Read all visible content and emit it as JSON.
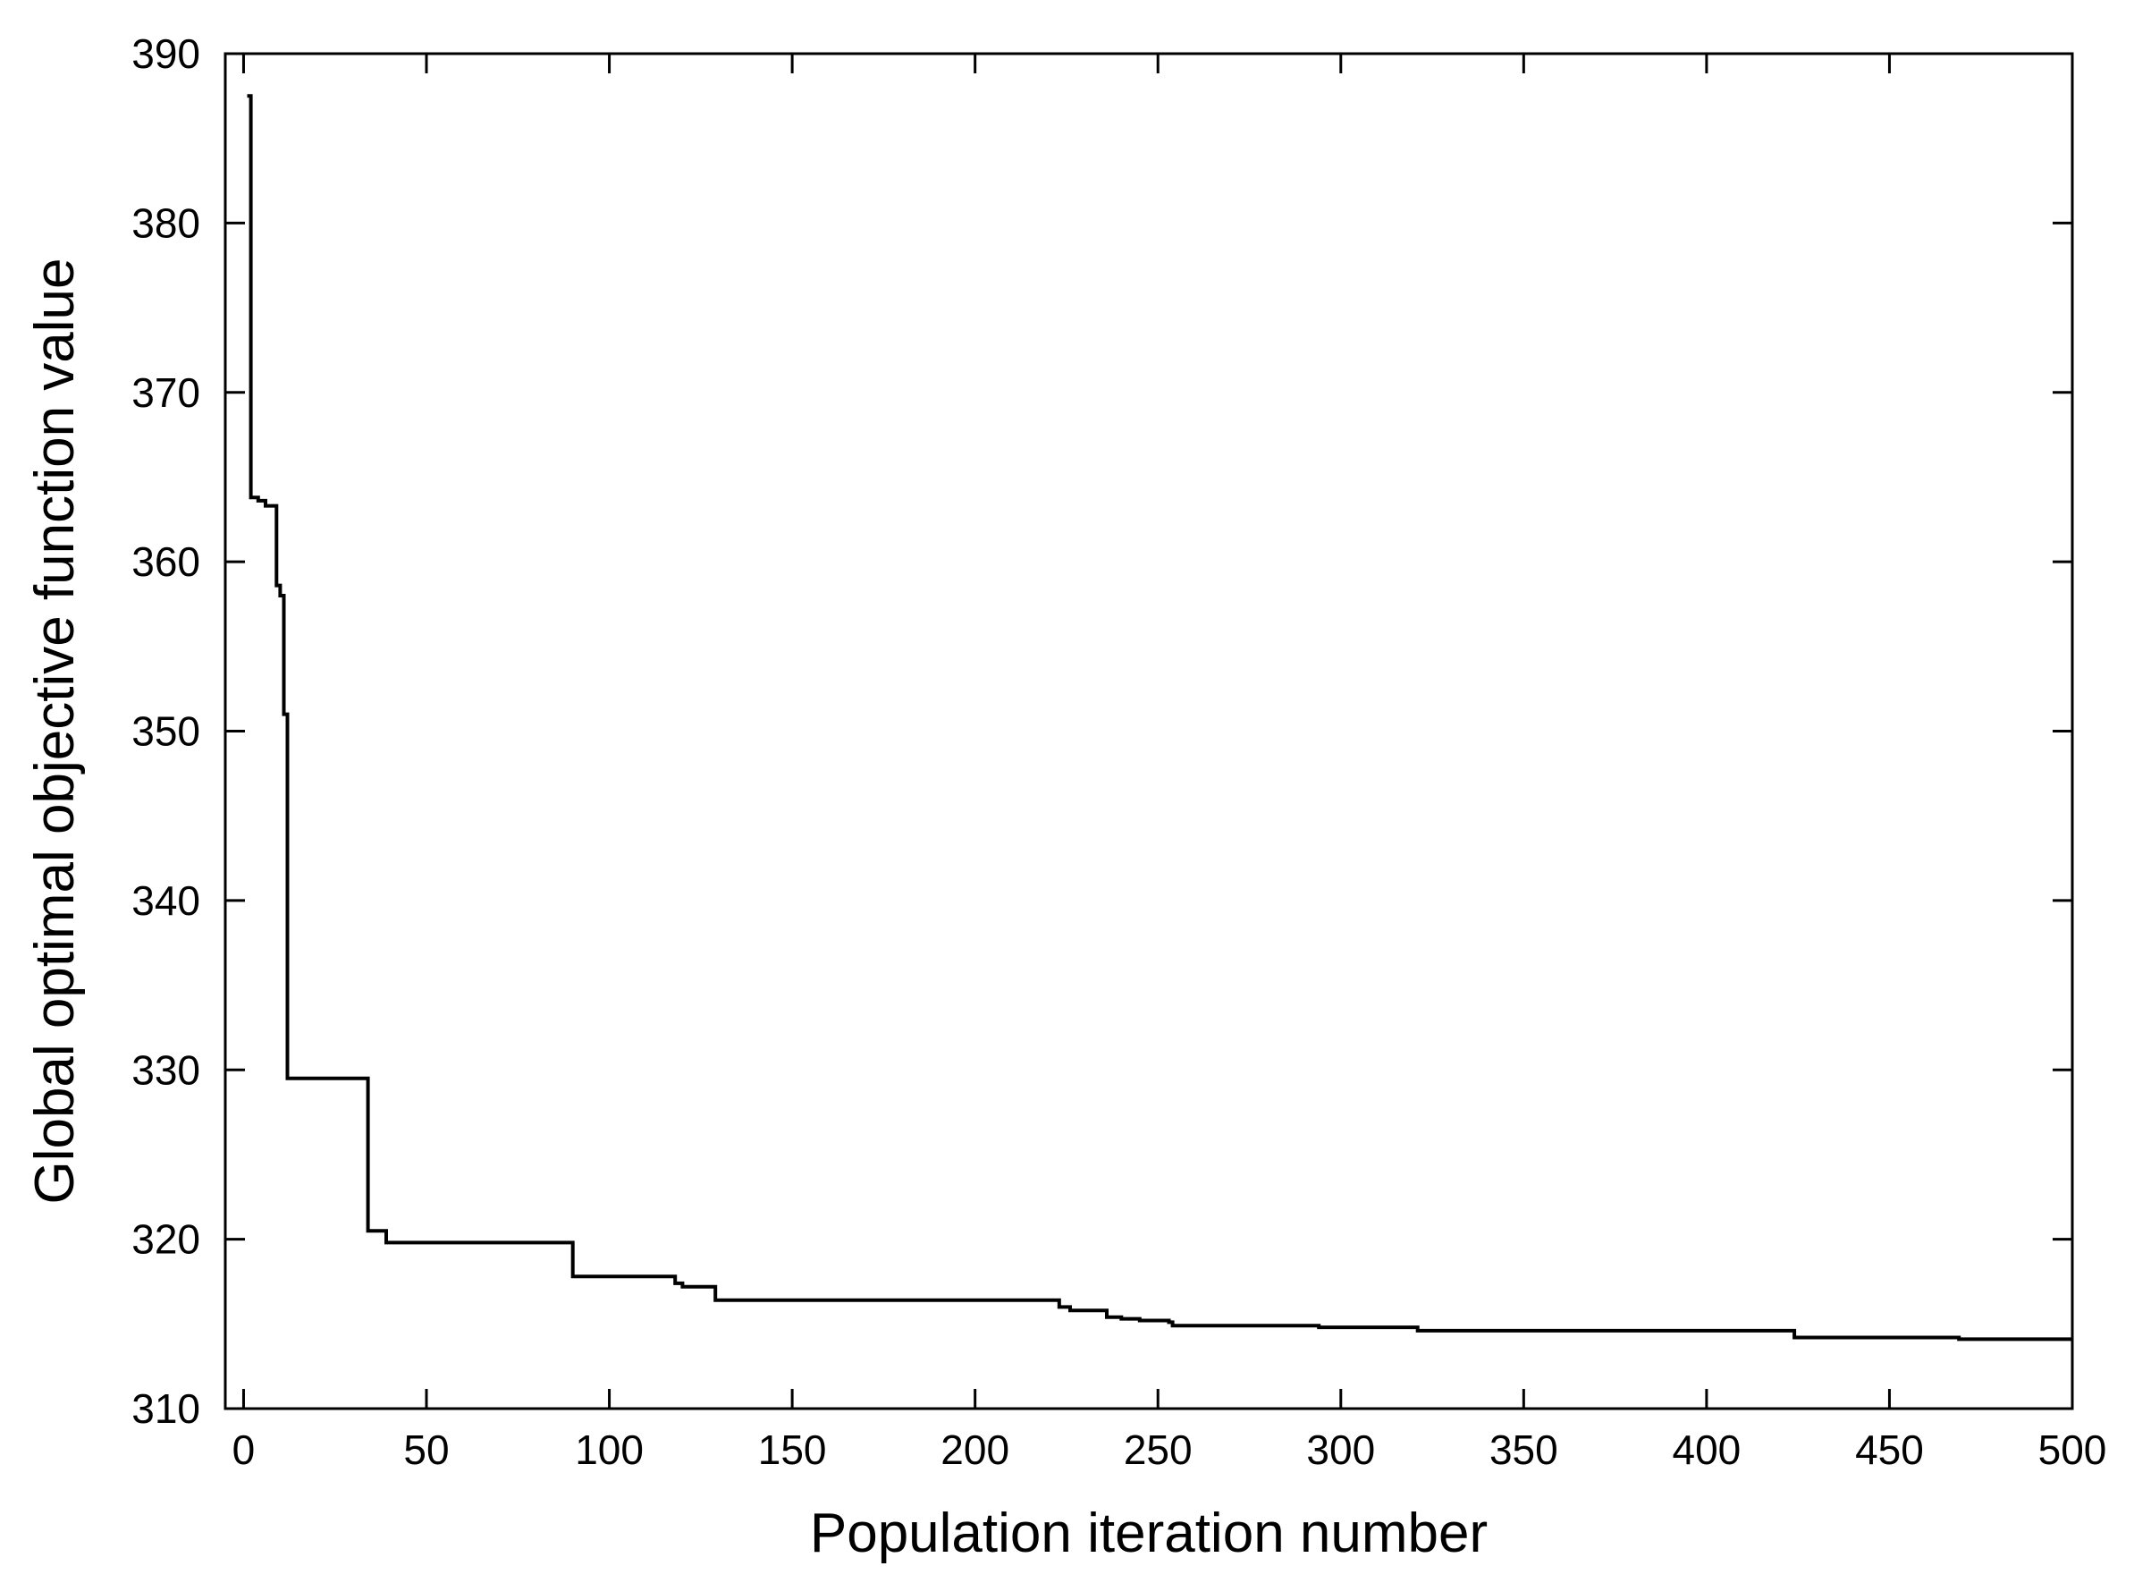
{
  "chart_data": {
    "type": "line",
    "title": "",
    "xlabel": "Population iteration number",
    "ylabel": "Global optimal objective function value",
    "xlim": [
      -5,
      500
    ],
    "ylim": [
      310,
      390
    ],
    "xticks": [
      0,
      50,
      100,
      150,
      200,
      250,
      300,
      350,
      400,
      450,
      500
    ],
    "yticks": [
      310,
      320,
      330,
      340,
      350,
      360,
      370,
      380,
      390
    ],
    "xtick_labels": [
      "0",
      "50",
      "100",
      "150",
      "200",
      "250",
      "300",
      "350",
      "400",
      "450",
      "500"
    ],
    "ytick_labels": [
      "310",
      "320",
      "330",
      "340",
      "350",
      "360",
      "370",
      "380",
      "390"
    ],
    "grid": false,
    "legend": "none",
    "line_color": "#000000",
    "series": [
      {
        "step": true,
        "x": [
          1,
          2,
          4,
          6,
          8,
          9,
          10,
          11,
          12,
          33,
          34,
          38,
          39,
          89,
          90,
          117,
          118,
          120,
          128,
          129,
          222,
          223,
          226,
          235,
          236,
          240,
          245,
          253,
          254,
          293,
          294,
          320,
          321,
          423,
          424,
          468,
          469,
          500
        ],
        "y": [
          387.5,
          363.8,
          363.6,
          363.3,
          363.3,
          358.6,
          358.0,
          351.0,
          329.5,
          329.5,
          320.5,
          320.5,
          319.8,
          319.8,
          317.8,
          317.8,
          317.4,
          317.2,
          317.2,
          316.4,
          316.4,
          316.0,
          315.8,
          315.8,
          315.4,
          315.3,
          315.2,
          315.1,
          314.9,
          314.9,
          314.8,
          314.8,
          314.6,
          314.6,
          314.2,
          314.2,
          314.1,
          314.1
        ]
      }
    ]
  }
}
